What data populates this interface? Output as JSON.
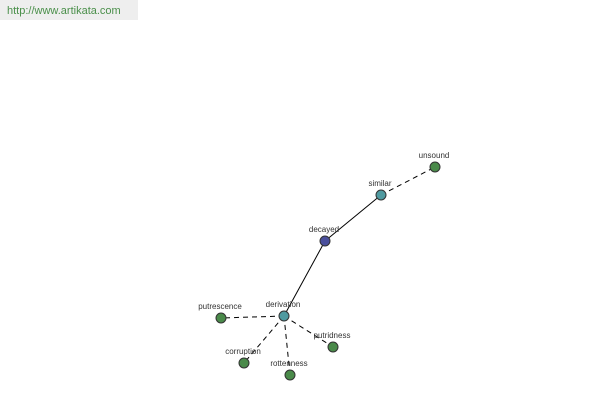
{
  "header": {
    "url": "http://www.artikata.com"
  },
  "nodes": [
    {
      "label": "decayed"
    },
    {
      "label": "similar"
    },
    {
      "label": "unsound"
    },
    {
      "label": "derivation"
    },
    {
      "label": "putrescence"
    },
    {
      "label": "corruption"
    },
    {
      "label": "rottenness"
    },
    {
      "label": "putridness"
    }
  ]
}
